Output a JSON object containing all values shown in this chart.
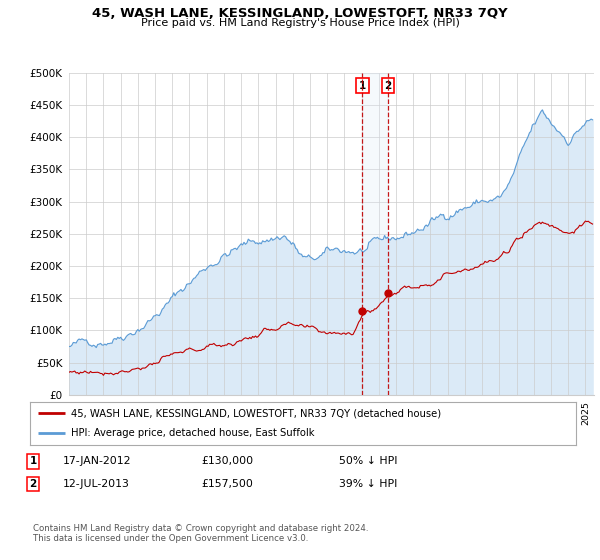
{
  "title": "45, WASH LANE, KESSINGLAND, LOWESTOFT, NR33 7QY",
  "subtitle": "Price paid vs. HM Land Registry's House Price Index (HPI)",
  "hpi_color": "#5b9bd5",
  "hpi_fill_color": "#dbeaf7",
  "sale_color": "#c00000",
  "hpi_line_label": "HPI: Average price, detached house, East Suffolk",
  "sale_line_label": "45, WASH LANE, KESSINGLAND, LOWESTOFT, NR33 7QY (detached house)",
  "annotation1_date": "17-JAN-2012",
  "annotation1_price": "£130,000",
  "annotation1_hpi": "50% ↓ HPI",
  "annotation2_date": "12-JUL-2013",
  "annotation2_price": "£157,500",
  "annotation2_hpi": "39% ↓ HPI",
  "sale1_x": 2012.046,
  "sale2_x": 2013.527,
  "sale1_y": 130000,
  "sale2_y": 157500,
  "ylim": [
    0,
    500000
  ],
  "xlim": [
    1995.0,
    2025.5
  ],
  "yticks": [
    0,
    50000,
    100000,
    150000,
    200000,
    250000,
    300000,
    350000,
    400000,
    450000,
    500000
  ],
  "footer": "Contains HM Land Registry data © Crown copyright and database right 2024.\nThis data is licensed under the Open Government Licence v3.0.",
  "bg_color": "#ffffff",
  "grid_color": "#cccccc"
}
